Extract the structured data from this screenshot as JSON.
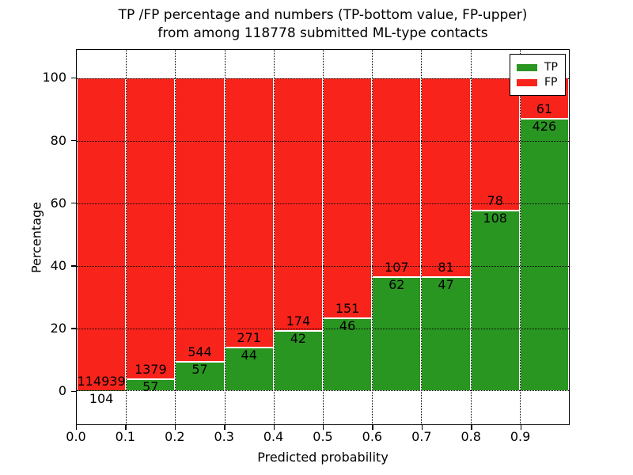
{
  "title": {
    "line1": "TP /FP percentage and numbers (TP-bottom value, FP-upper)",
    "line2": "from among 118778 submitted ML-type contacts"
  },
  "axes": {
    "xlabel": "Predicted probability",
    "ylabel": "Percentage",
    "xtick_labels": [
      "0.0",
      "0.1",
      "0.2",
      "0.3",
      "0.4",
      "0.5",
      "0.6",
      "0.7",
      "0.8",
      "0.9"
    ],
    "ytick_values": [
      0,
      20,
      40,
      60,
      80,
      100
    ],
    "ytick_labels": [
      "0",
      "20",
      "40",
      "60",
      "80",
      "100"
    ],
    "xlim": [
      0.0,
      1.0
    ],
    "ylim": [
      -10.8,
      109.2
    ],
    "grid_style": "dotted",
    "grid_color": "#000000"
  },
  "legend": {
    "position": "upper-right",
    "items": [
      {
        "label": "TP",
        "color": "#2a9622"
      },
      {
        "label": "FP",
        "color": "#f8241c"
      }
    ]
  },
  "chart_data": {
    "type": "bar",
    "stacked": true,
    "normalized_to_percent": true,
    "title": "TP /FP percentage and numbers (TP-bottom value, FP-upper) from among 118778 submitted ML-type contacts",
    "xlabel": "Predicted probability",
    "ylabel": "Percentage",
    "bin_edges": [
      0.0,
      0.1,
      0.2,
      0.3,
      0.4,
      0.5,
      0.6,
      0.7,
      0.8,
      0.9,
      1.0
    ],
    "categories": [
      "0.0-0.1",
      "0.1-0.2",
      "0.2-0.3",
      "0.3-0.4",
      "0.4-0.5",
      "0.5-0.6",
      "0.6-0.7",
      "0.7-0.8",
      "0.8-0.9",
      "0.9-1.0"
    ],
    "series": [
      {
        "name": "TP",
        "color": "#2a9622",
        "counts": [
          104,
          57,
          57,
          44,
          42,
          46,
          62,
          47,
          108,
          426
        ]
      },
      {
        "name": "FP",
        "color": "#f8241c",
        "counts": [
          114939,
          1379,
          544,
          271,
          174,
          151,
          107,
          81,
          78,
          61
        ]
      }
    ],
    "tp_percent_of_bin": [
      0.09,
      3.97,
      9.48,
      13.97,
      19.44,
      23.35,
      36.69,
      36.72,
      58.06,
      87.47
    ],
    "total_contacts": 118778,
    "value_axis_range": [
      0,
      100
    ],
    "legend_position": "upper right",
    "grid": "dotted black at x ticks and y ticks"
  }
}
